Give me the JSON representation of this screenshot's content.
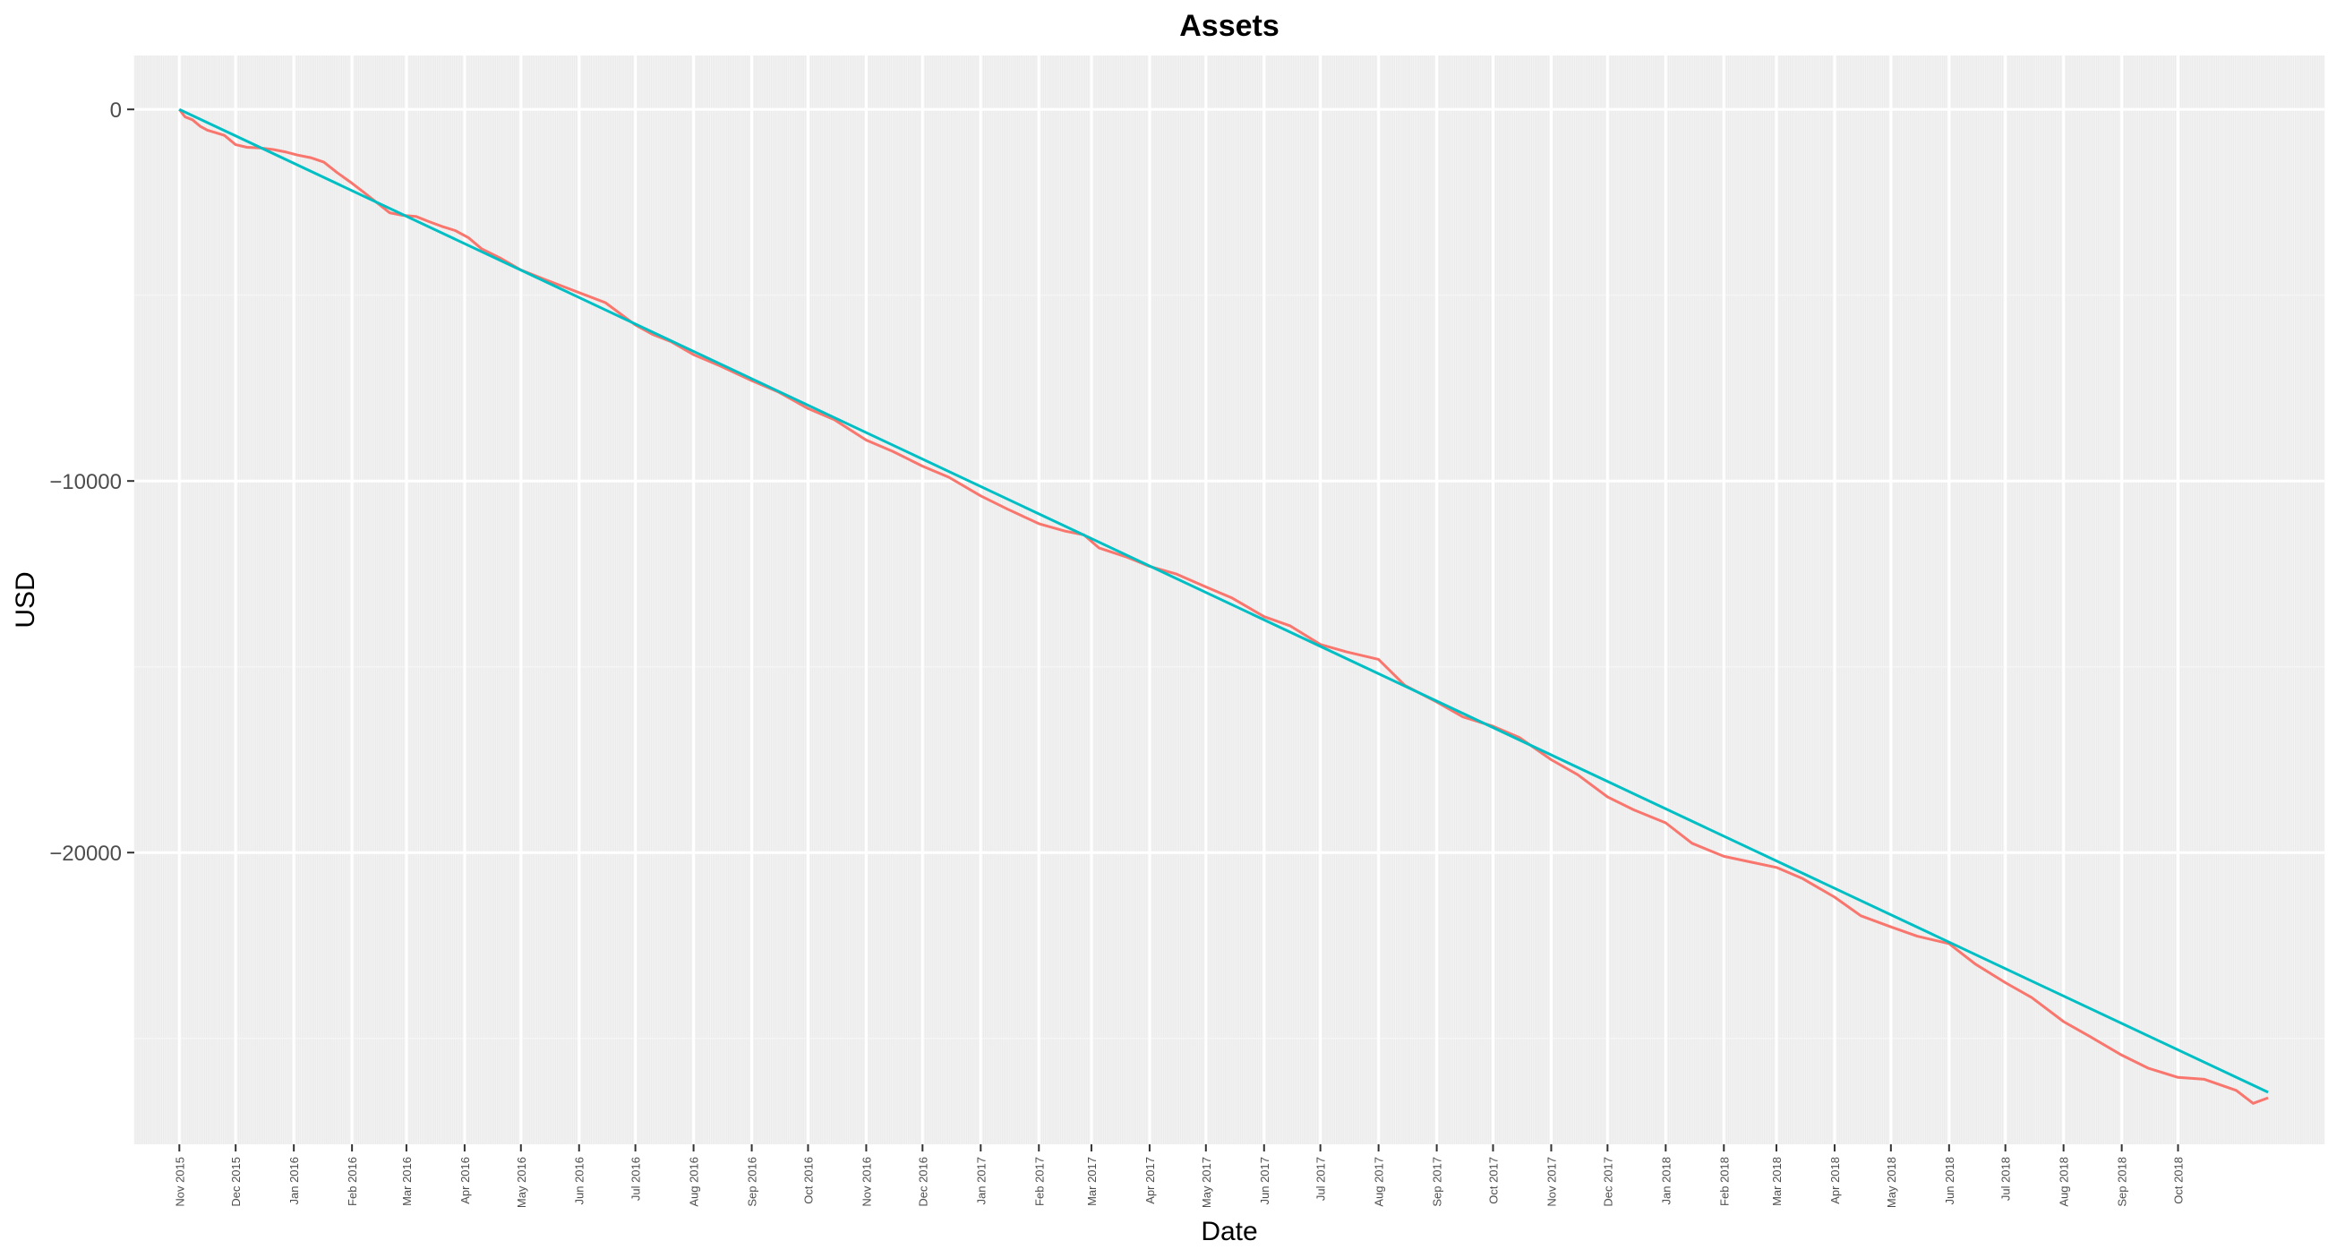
{
  "chart_data": {
    "type": "line",
    "title": "Assets",
    "xlabel": "Date",
    "ylabel": "USD",
    "x_ticks": [
      "Nov 2015",
      "Dec 2015",
      "Jan 2016",
      "Feb 2016",
      "Mar 2016",
      "Apr 2016",
      "May 2016",
      "Jun 2016",
      "Jul 2016",
      "Aug 2016",
      "Sep 2016",
      "Oct 2016",
      "Nov 2016",
      "Dec 2016",
      "Jan 2017",
      "Feb 2017",
      "Mar 2017",
      "Apr 2017",
      "May 2017",
      "Jun 2017",
      "Jul 2017",
      "Aug 2017",
      "Sep 2017",
      "Oct 2017",
      "Nov 2017",
      "Dec 2017",
      "Jan 2018",
      "Feb 2018",
      "Mar 2018",
      "Apr 2018",
      "May 2018",
      "Jun 2018",
      "Jul 2018",
      "Aug 2018",
      "Sep 2018",
      "Oct 2018"
    ],
    "y_ticks": [
      0,
      -10000,
      -20000
    ],
    "y_tick_labels": [
      "0",
      "−10000",
      "−20000"
    ],
    "xlim": [
      "2015-10-08",
      "2018-12-18"
    ],
    "ylim": [
      -27850,
      1450
    ],
    "grid": true,
    "background": "#EBEBEB",
    "series": [
      {
        "color": "#F8766D",
        "points": [
          [
            "2015-11-01",
            0
          ],
          [
            "2015-11-04",
            -200
          ],
          [
            "2015-11-08",
            -280
          ],
          [
            "2015-11-12",
            -450
          ],
          [
            "2015-11-16",
            -560
          ],
          [
            "2015-11-20",
            -620
          ],
          [
            "2015-11-25",
            -700
          ],
          [
            "2015-12-01",
            -950
          ],
          [
            "2015-12-07",
            -1020
          ],
          [
            "2015-12-14",
            -1040
          ],
          [
            "2015-12-21",
            -1080
          ],
          [
            "2015-12-28",
            -1150
          ],
          [
            "2016-01-03",
            -1230
          ],
          [
            "2016-01-10",
            -1300
          ],
          [
            "2016-01-17",
            -1420
          ],
          [
            "2016-01-24",
            -1700
          ],
          [
            "2016-01-31",
            -1950
          ],
          [
            "2016-02-07",
            -2220
          ],
          [
            "2016-02-14",
            -2500
          ],
          [
            "2016-02-21",
            -2780
          ],
          [
            "2016-02-28",
            -2850
          ],
          [
            "2016-03-06",
            -2880
          ],
          [
            "2016-03-13",
            -3020
          ],
          [
            "2016-03-20",
            -3150
          ],
          [
            "2016-03-27",
            -3260
          ],
          [
            "2016-04-03",
            -3450
          ],
          [
            "2016-04-10",
            -3750
          ],
          [
            "2016-04-20",
            -4000
          ],
          [
            "2016-05-01",
            -4320
          ],
          [
            "2016-05-15",
            -4600
          ],
          [
            "2016-06-01",
            -4930
          ],
          [
            "2016-06-15",
            -5200
          ],
          [
            "2016-07-01",
            -5800
          ],
          [
            "2016-07-10",
            -6050
          ],
          [
            "2016-07-20",
            -6250
          ],
          [
            "2016-08-01",
            -6600
          ],
          [
            "2016-08-15",
            -6900
          ],
          [
            "2016-09-01",
            -7300
          ],
          [
            "2016-09-15",
            -7600
          ],
          [
            "2016-10-01",
            -8050
          ],
          [
            "2016-10-15",
            -8350
          ],
          [
            "2016-11-01",
            -8900
          ],
          [
            "2016-11-15",
            -9200
          ],
          [
            "2016-12-01",
            -9600
          ],
          [
            "2016-12-15",
            -9900
          ],
          [
            "2017-01-01",
            -10400
          ],
          [
            "2017-01-15",
            -10750
          ],
          [
            "2017-02-01",
            -11150
          ],
          [
            "2017-02-15",
            -11350
          ],
          [
            "2017-02-25",
            -11450
          ],
          [
            "2017-03-05",
            -11800
          ],
          [
            "2017-03-20",
            -12050
          ],
          [
            "2017-04-01",
            -12300
          ],
          [
            "2017-04-15",
            -12500
          ],
          [
            "2017-05-01",
            -12850
          ],
          [
            "2017-05-15",
            -13150
          ],
          [
            "2017-06-01",
            -13650
          ],
          [
            "2017-06-15",
            -13900
          ],
          [
            "2017-07-01",
            -14400
          ],
          [
            "2017-07-15",
            -14600
          ],
          [
            "2017-08-01",
            -14800
          ],
          [
            "2017-08-15",
            -15500
          ],
          [
            "2017-09-01",
            -15950
          ],
          [
            "2017-09-15",
            -16350
          ],
          [
            "2017-10-01",
            -16600
          ],
          [
            "2017-10-15",
            -16900
          ],
          [
            "2017-11-01",
            -17500
          ],
          [
            "2017-11-15",
            -17900
          ],
          [
            "2017-12-01",
            -18500
          ],
          [
            "2017-12-15",
            -18850
          ],
          [
            "2018-01-01",
            -19200
          ],
          [
            "2018-01-15",
            -19750
          ],
          [
            "2018-02-01",
            -20100
          ],
          [
            "2018-02-15",
            -20250
          ],
          [
            "2018-03-01",
            -20400
          ],
          [
            "2018-03-15",
            -20700
          ],
          [
            "2018-04-01",
            -21200
          ],
          [
            "2018-04-15",
            -21700
          ],
          [
            "2018-05-01",
            -22000
          ],
          [
            "2018-05-15",
            -22250
          ],
          [
            "2018-06-01",
            -22450
          ],
          [
            "2018-06-15",
            -23000
          ],
          [
            "2018-07-01",
            -23500
          ],
          [
            "2018-07-15",
            -23900
          ],
          [
            "2018-08-01",
            -24550
          ],
          [
            "2018-08-15",
            -24950
          ],
          [
            "2018-09-01",
            -25450
          ],
          [
            "2018-09-15",
            -25800
          ],
          [
            "2018-10-01",
            -26050
          ],
          [
            "2018-10-15",
            -26100
          ],
          [
            "2018-11-01",
            -26400
          ],
          [
            "2018-11-10",
            -26750
          ],
          [
            "2018-11-18",
            -26600
          ]
        ]
      },
      {
        "color": "#00BFC4",
        "points": [
          [
            "2015-11-01",
            0
          ],
          [
            "2018-11-18",
            -26450
          ]
        ]
      }
    ]
  }
}
